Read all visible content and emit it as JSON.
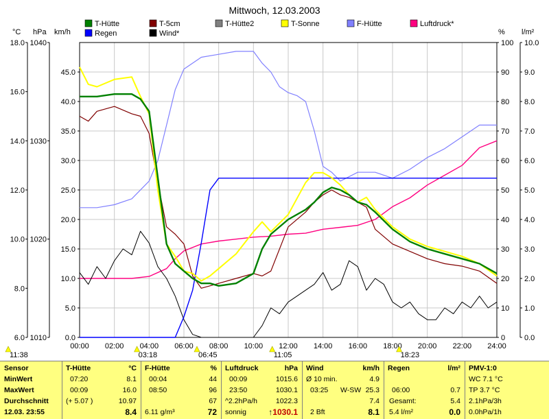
{
  "title": "Mittwoch, 12.03.2003",
  "colors": {
    "t_huette": "#008000",
    "t_5cm": "#800000",
    "t_huette2": "#808080",
    "t_sonne": "#ffff00",
    "f_huette": "#8080ff",
    "luftdruck": "#ff0080",
    "regen": "#0000ff",
    "wind": "#000000",
    "table_bg": "#ffff80"
  },
  "units": {
    "c": "°C",
    "hpa": "hPa",
    "kmh": "km/h",
    "pct": "%",
    "lm2": "l/m²"
  },
  "legend": [
    {
      "label": "T-Hütte",
      "color": "#008000"
    },
    {
      "label": "T-5cm",
      "color": "#800000"
    },
    {
      "label": "T-Hütte2",
      "color": "#808080"
    },
    {
      "label": "T-Sonne",
      "color": "#ffff00"
    },
    {
      "label": "F-Hütte",
      "color": "#8080ff"
    },
    {
      "label": "Luftdruck*",
      "color": "#ff0080"
    },
    {
      "label": "Regen",
      "color": "#0000ff"
    },
    {
      "label": "Wind*",
      "color": "#000000"
    }
  ],
  "bottom_markers": [
    {
      "text": "11:38",
      "hour": -3.3
    },
    {
      "text": "03:18",
      "hour": 3.3
    },
    {
      "text": "06:45",
      "hour": 6.75
    },
    {
      "text": "11:05",
      "hour": 11.08
    },
    {
      "text": "18:23",
      "hour": 18.38
    }
  ],
  "chart_data": {
    "type": "line",
    "title": "Mittwoch, 12.03.2003",
    "x_range": [
      0,
      24
    ],
    "x_ticks": [
      "00:00",
      "02:00",
      "04:00",
      "06:00",
      "08:00",
      "10:00",
      "12:00",
      "14:00",
      "16:00",
      "18:00",
      "20:00",
      "22:00",
      "24:00"
    ],
    "axes": {
      "temp_c": {
        "range": [
          6,
          18
        ],
        "ticks": [
          "6.0",
          "8.0",
          "10.0",
          "12.0",
          "14.0",
          "16.0",
          "18.0"
        ]
      },
      "pressure_hpa": {
        "range": [
          1010,
          1040
        ],
        "ticks": [
          "1010",
          "1020",
          "1030",
          "1040"
        ]
      },
      "wind_kmh": {
        "range": [
          0,
          50
        ],
        "ticks": [
          "0.0",
          "5.0",
          "10.0",
          "15.0",
          "20.0",
          "25.0",
          "30.0",
          "35.0",
          "40.0",
          "45.0"
        ]
      },
      "humidity_pct": {
        "range": [
          0,
          100
        ],
        "ticks": [
          "0",
          "10",
          "20",
          "30",
          "40",
          "50",
          "60",
          "70",
          "80",
          "90",
          "100"
        ]
      },
      "rain_lm2": {
        "range": [
          0,
          10
        ],
        "ticks": [
          "0.0",
          "1.0",
          "2.0",
          "3.0",
          "4.0",
          "5.0",
          "6.0",
          "7.0",
          "8.0",
          "9.0",
          "10.0"
        ]
      }
    },
    "series": [
      {
        "name": "T-Hütte",
        "axis": "temp_c",
        "x": [
          0,
          0.5,
          1,
          2,
          3,
          3.5,
          4,
          4.5,
          5,
          5.5,
          6,
          6.5,
          7,
          7.5,
          8,
          9,
          10,
          10.5,
          11,
          12,
          13,
          13.5,
          14,
          14.5,
          15,
          15.5,
          16,
          16.5,
          17,
          18,
          19,
          20,
          21,
          22,
          23,
          24
        ],
        "y": [
          15.8,
          15.8,
          15.8,
          15.9,
          15.9,
          15.7,
          15.2,
          12.5,
          9.8,
          9.0,
          8.7,
          8.4,
          8.2,
          8.2,
          8.1,
          8.2,
          8.6,
          9.6,
          10.2,
          10.8,
          11.2,
          11.5,
          11.9,
          12.1,
          12.0,
          11.8,
          11.5,
          11.4,
          11.1,
          10.4,
          9.9,
          9.6,
          9.4,
          9.2,
          9.0,
          8.6
        ]
      },
      {
        "name": "T-5cm",
        "axis": "temp_c",
        "x": [
          0,
          0.5,
          1,
          2,
          3,
          3.5,
          4,
          4.5,
          5,
          5.5,
          6,
          6.5,
          7,
          7.5,
          8,
          9,
          10,
          10.5,
          11,
          12,
          13,
          13.5,
          14,
          14.5,
          15,
          15.5,
          16,
          16.5,
          17,
          18,
          19,
          20,
          21,
          22,
          23,
          24
        ],
        "y": [
          15.0,
          14.8,
          15.2,
          15.4,
          15.1,
          15.0,
          14.3,
          12.3,
          10.5,
          10.2,
          9.8,
          8.5,
          8.0,
          8.1,
          8.2,
          8.4,
          8.6,
          8.5,
          8.7,
          10.5,
          11.1,
          11.5,
          11.8,
          12.0,
          11.8,
          11.7,
          11.5,
          11.3,
          10.4,
          9.8,
          9.5,
          9.2,
          9.0,
          8.9,
          8.7,
          8.2
        ]
      },
      {
        "name": "T-Sonne",
        "axis": "temp_c",
        "x": [
          0,
          0.5,
          1,
          2,
          3,
          3.5,
          4,
          4.5,
          5,
          5.5,
          6,
          6.5,
          7,
          7.5,
          8,
          9,
          10,
          10.5,
          11,
          12,
          13,
          13.5,
          14,
          14.5,
          15,
          15.5,
          16,
          16.5,
          17,
          18,
          19,
          20,
          21,
          22,
          23,
          24
        ],
        "y": [
          17.0,
          16.3,
          16.2,
          16.5,
          16.6,
          15.8,
          15.1,
          12.0,
          9.8,
          9.3,
          8.7,
          8.6,
          8.3,
          8.5,
          8.8,
          9.4,
          10.3,
          10.7,
          10.3,
          11.0,
          12.3,
          12.7,
          12.7,
          12.5,
          12.2,
          11.8,
          11.5,
          11.7,
          11.2,
          10.5,
          10.0,
          9.7,
          9.5,
          9.3,
          9.0,
          8.5
        ]
      },
      {
        "name": "F-Hütte",
        "axis": "humidity_pct",
        "x": [
          0,
          1,
          2,
          3,
          4,
          4.5,
          5,
          5.5,
          6,
          7,
          8,
          9,
          10,
          10.5,
          11,
          11.5,
          12,
          12.5,
          13,
          13.5,
          14,
          14.5,
          15,
          16,
          17,
          18,
          19,
          20,
          21,
          22,
          23,
          24
        ],
        "y": [
          44,
          44,
          45,
          47,
          53,
          60,
          72,
          84,
          91,
          95,
          96,
          97,
          97,
          93,
          90,
          85,
          83,
          82,
          80,
          70,
          58,
          56,
          53,
          56,
          56,
          54,
          57,
          61,
          64,
          68,
          72,
          72
        ]
      },
      {
        "name": "Luftdruck*",
        "axis": "pressure_hpa",
        "x": [
          0,
          1,
          2,
          3,
          4,
          5,
          5.5,
          6,
          7,
          8,
          9,
          10,
          11,
          12,
          13,
          14,
          15,
          16,
          17,
          18,
          19,
          20,
          21,
          22,
          23,
          24
        ],
        "y": [
          1016.0,
          1016.0,
          1016.0,
          1016.0,
          1016.2,
          1017.0,
          1018.0,
          1018.8,
          1019.5,
          1019.8,
          1020.0,
          1020.2,
          1020.3,
          1020.5,
          1020.6,
          1021.0,
          1021.2,
          1021.4,
          1022.0,
          1023.3,
          1024.2,
          1025.5,
          1026.5,
          1027.5,
          1029.3,
          1030.0
        ]
      },
      {
        "name": "Regen",
        "axis": "rain_lm2",
        "x": [
          0,
          5.5,
          6,
          6.5,
          7,
          7.5,
          8,
          12,
          16,
          20,
          24
        ],
        "y": [
          0,
          0,
          0.7,
          1.6,
          3.2,
          5.0,
          5.4,
          5.4,
          5.4,
          5.4,
          5.4
        ]
      },
      {
        "name": "Wind*",
        "axis": "wind_kmh",
        "x": [
          0,
          0.5,
          1,
          1.5,
          2,
          2.5,
          3,
          3.5,
          4,
          4.5,
          5,
          5.5,
          6,
          6.5,
          7,
          7.5,
          8,
          8.5,
          9,
          9.5,
          10,
          10.5,
          11,
          11.5,
          12,
          12.5,
          13,
          13.5,
          14,
          14.5,
          15,
          15.5,
          16,
          16.5,
          17,
          17.5,
          18,
          18.5,
          19,
          19.5,
          20,
          20.5,
          21,
          21.5,
          22,
          22.5,
          23,
          23.5,
          24
        ],
        "y": [
          11,
          9,
          12,
          10,
          13,
          15,
          14,
          18,
          16,
          12,
          10,
          7,
          3,
          0.5,
          0,
          0,
          0,
          0,
          0,
          0,
          0,
          2,
          5,
          4,
          6,
          7,
          8,
          9,
          11,
          8,
          9,
          13,
          12,
          8,
          10,
          9,
          6,
          5,
          6,
          4,
          3,
          3,
          5,
          4,
          6,
          5,
          7,
          5,
          6
        ]
      }
    ]
  },
  "table": {
    "headers": {
      "sensor": "Sensor",
      "t_huette": "T-Hütte",
      "t_unit": "°C",
      "f_huette": "F-Hütte",
      "f_unit": "%",
      "luftdruck": "Luftdruck",
      "l_unit": "hPa",
      "wind": "Wind",
      "w_unit": "km/h",
      "regen": "Regen",
      "r_unit": "l/m²",
      "pmv": "PMV-1:0"
    },
    "labels": {
      "min": "MinWert",
      "max": "MaxWert",
      "avg": "Durchschnitt",
      "now": "12.03.  23:55"
    },
    "t_huette": {
      "min_time": "07:20",
      "min": "8.1",
      "max_time": "00:09",
      "max": "16.0",
      "avg_note": "(+ 5.07 )",
      "avg": "10.97",
      "now": "8.4"
    },
    "f_huette": {
      "min_time": "00:04",
      "min": "44",
      "max_time": "08:50",
      "max": "96",
      "avg": "67",
      "now_note": "6.11 g/m³",
      "now": "72"
    },
    "luftdruck": {
      "min_time": "00:09",
      "min": "1015.6",
      "max_time": "23:50",
      "max": "1030.1",
      "trend": "^2.2hPa/h",
      "avg": "1022.3",
      "weather": "sonnig",
      "now": "1030.1"
    },
    "wind": {
      "avg_label": "Ø 10 min.",
      "avg": "4.9",
      "max_time": "03:25",
      "max_dir": "W-SW",
      "max": "25.3",
      "avg2": "7.4",
      "bft": "2 Bft",
      "now": "8.1"
    },
    "regen": {
      "max_time": "06:00",
      "max": "0.7",
      "total_label": "Gesamt:",
      "total": "5.4",
      "now_note": "5.4 l/m²",
      "now": "0.0"
    },
    "pmv": {
      "wc": "WC 7.1 °C",
      "tp": "TP 3.7 °C",
      "r3": "2.1hPa/3h",
      "r1": "0.0hPa/1h"
    }
  }
}
